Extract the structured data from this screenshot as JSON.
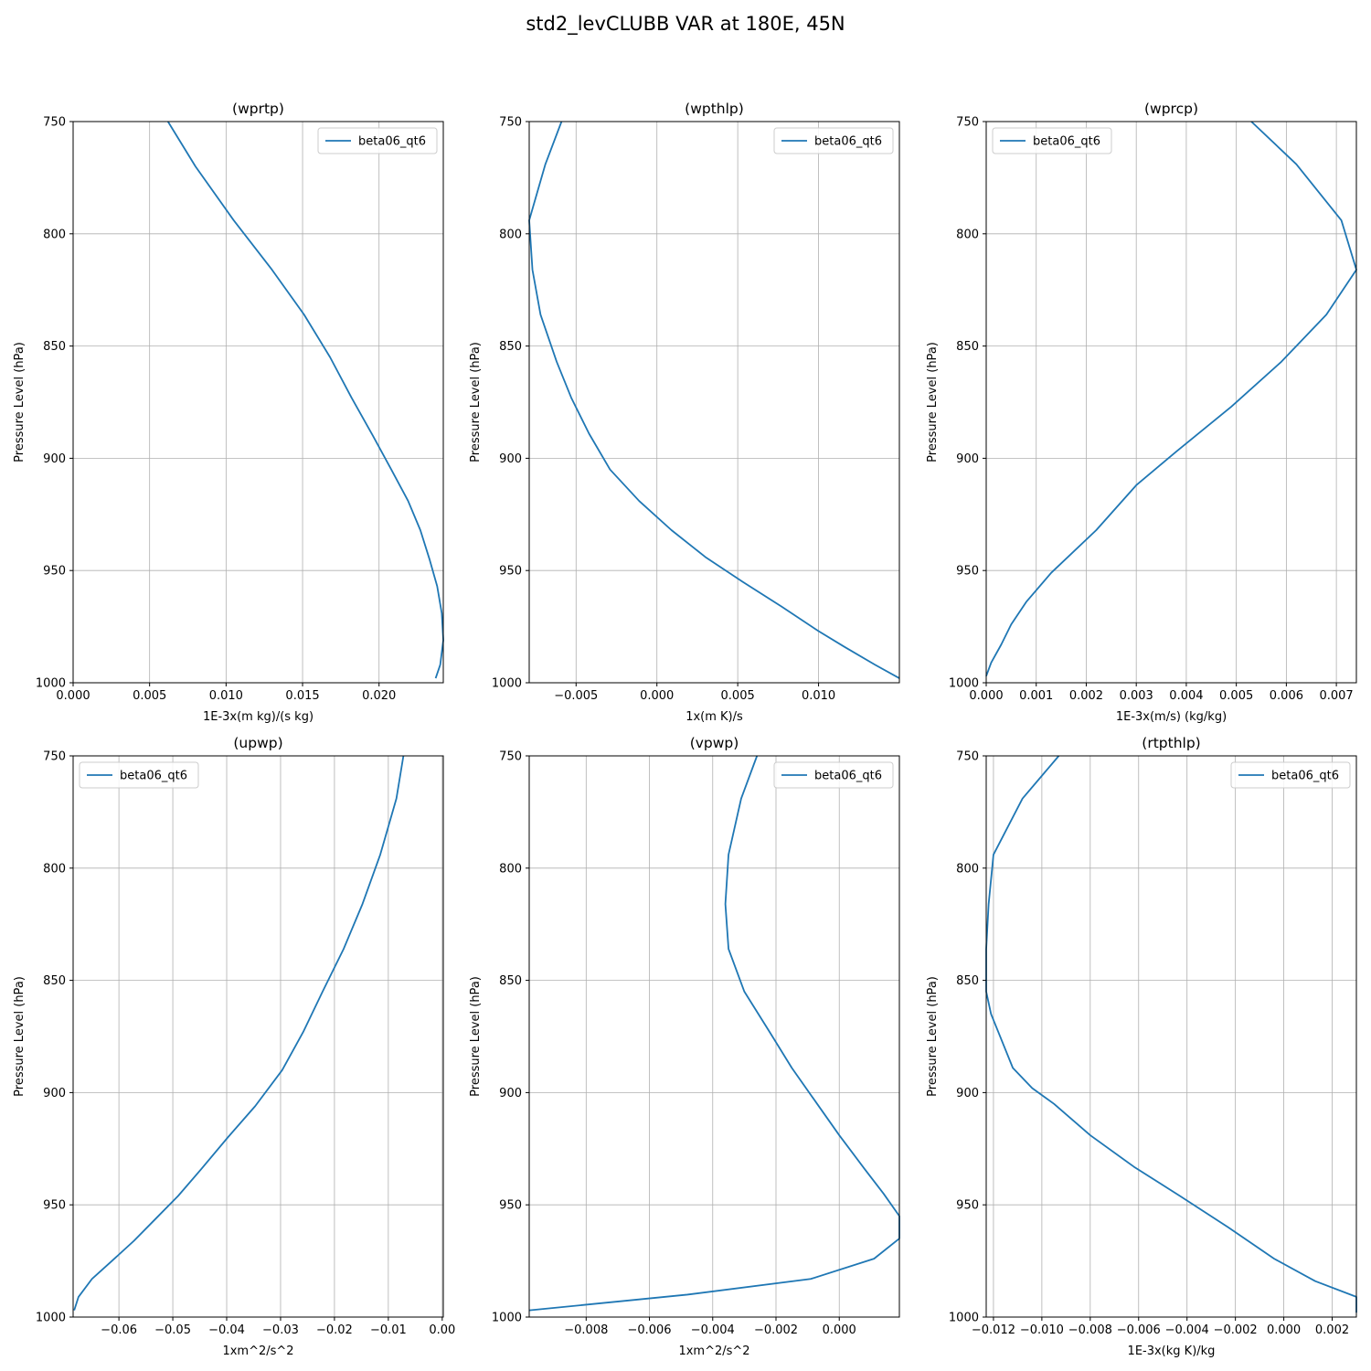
{
  "figure": {
    "title": "std2_levCLUBB VAR at 180E, 45N"
  },
  "chart_data": [
    {
      "type": "line",
      "title": "(wprtp)",
      "xlabel": "1E-3x(m kg)/(s kg)",
      "ylabel": "Pressure Level (hPa)",
      "xlim": [
        0.0,
        0.0242
      ],
      "ylim": [
        1000,
        750
      ],
      "xticks": [
        0.0,
        0.005,
        0.01,
        0.015,
        0.02
      ],
      "xtick_labels": [
        "0.000",
        "0.005",
        "0.010",
        "0.015",
        "0.020"
      ],
      "yticks": [
        750,
        800,
        850,
        900,
        950,
        1000
      ],
      "grid": true,
      "legend_position": "upper right",
      "series": [
        {
          "name": "beta06_qt6",
          "color": "#1f77b4",
          "x": [
            0.0062,
            0.008,
            0.0105,
            0.013,
            0.0151,
            0.0168,
            0.0182,
            0.0196,
            0.0208,
            0.0219,
            0.0227,
            0.0233,
            0.0238,
            0.0241,
            0.0242,
            0.024,
            0.0237
          ],
          "y": [
            750,
            770,
            794,
            816,
            836,
            855,
            873,
            890,
            905,
            919,
            932,
            945,
            957,
            969,
            981,
            992,
            998
          ]
        }
      ]
    },
    {
      "type": "line",
      "title": "(wpthlp)",
      "xlabel": "1x(m K)/s",
      "ylabel": "Pressure Level (hPa)",
      "xlim": [
        -0.0079,
        0.015
      ],
      "ylim": [
        1000,
        750
      ],
      "xticks": [
        -0.005,
        0.0,
        0.005,
        0.01
      ],
      "xtick_labels": [
        "−0.005",
        "0.000",
        "0.005",
        "0.010"
      ],
      "yticks": [
        750,
        800,
        850,
        900,
        950,
        1000
      ],
      "grid": true,
      "legend_position": "upper right",
      "series": [
        {
          "name": "beta06_qt6",
          "color": "#1f77b4",
          "x": [
            -0.0059,
            -0.0069,
            -0.0079,
            -0.0077,
            -0.0072,
            -0.0062,
            -0.0053,
            -0.0042,
            -0.0029,
            -0.0011,
            0.0009,
            0.003,
            0.0053,
            0.0077,
            0.01,
            0.0116,
            0.0135,
            0.015
          ],
          "y": [
            750,
            769,
            794,
            816,
            836,
            857,
            873,
            889,
            905,
            919,
            932,
            944,
            955,
            966,
            977,
            984,
            992,
            998
          ]
        }
      ]
    },
    {
      "type": "line",
      "title": "(wprcp)",
      "xlabel": "1E-3x(m/s) (kg/kg)",
      "ylabel": "Pressure Level (hPa)",
      "xlim": [
        0.0,
        0.0074
      ],
      "ylim": [
        1000,
        750
      ],
      "xticks": [
        0.0,
        0.001,
        0.002,
        0.003,
        0.004,
        0.005,
        0.006,
        0.007
      ],
      "xtick_labels": [
        "0.000",
        "0.001",
        "0.002",
        "0.003",
        "0.004",
        "0.005",
        "0.006",
        "0.007"
      ],
      "yticks": [
        750,
        800,
        850,
        900,
        950,
        1000
      ],
      "grid": true,
      "legend_position": "upper left",
      "series": [
        {
          "name": "beta06_qt6",
          "color": "#1f77b4",
          "x": [
            0.0053,
            0.0062,
            0.0071,
            0.0074,
            0.0068,
            0.0059,
            0.0049,
            0.0038,
            0.003,
            0.0022,
            0.0013,
            0.0008,
            0.0005,
            0.0003,
            0.0001,
            0.0
          ],
          "y": [
            750,
            769,
            794,
            816,
            836,
            857,
            877,
            897,
            912,
            932,
            951,
            964,
            974,
            983,
            991,
            997
          ]
        }
      ]
    },
    {
      "type": "line",
      "title": "(upwp)",
      "xlabel": "1xm^2/s^2",
      "ylabel": "Pressure Level (hPa)",
      "xlim": [
        -0.0685,
        0.0002
      ],
      "ylim": [
        1000,
        750
      ],
      "xticks": [
        -0.06,
        -0.05,
        -0.04,
        -0.03,
        -0.02,
        -0.01,
        0.0
      ],
      "xtick_labels": [
        "−0.06",
        "−0.05",
        "−0.04",
        "−0.03",
        "−0.02",
        "−0.01",
        "0.00"
      ],
      "yticks": [
        750,
        800,
        850,
        900,
        950,
        1000
      ],
      "grid": true,
      "legend_position": "upper left",
      "series": [
        {
          "name": "beta06_qt6",
          "color": "#1f77b4",
          "x": [
            -0.0072,
            -0.0085,
            -0.0115,
            -0.0148,
            -0.0183,
            -0.0222,
            -0.0258,
            -0.0297,
            -0.0347,
            -0.0398,
            -0.0447,
            -0.049,
            -0.0531,
            -0.0572,
            -0.0613,
            -0.065,
            -0.0675,
            -0.0683
          ],
          "y": [
            750,
            769,
            794,
            816,
            836,
            855,
            873,
            890,
            906,
            920,
            934,
            946,
            956,
            966,
            975,
            983,
            991,
            997
          ]
        }
      ]
    },
    {
      "type": "line",
      "title": "(vpwp)",
      "xlabel": "1xm^2/s^2",
      "ylabel": "Pressure Level (hPa)",
      "xlim": [
        -0.0098,
        0.0019
      ],
      "ylim": [
        1000,
        750
      ],
      "xticks": [
        -0.008,
        -0.006,
        -0.004,
        -0.002,
        0.0
      ],
      "xtick_labels": [
        "−0.008",
        "−0.006",
        "−0.004",
        "−0.002",
        "0.000"
      ],
      "yticks": [
        750,
        800,
        850,
        900,
        950,
        1000
      ],
      "grid": true,
      "legend_position": "upper right",
      "series": [
        {
          "name": "beta06_qt6",
          "color": "#1f77b4",
          "x": [
            -0.0026,
            -0.0031,
            -0.0035,
            -0.0036,
            -0.0035,
            -0.003,
            -0.0022,
            -0.0015,
            -0.0007,
            0.0,
            0.0008,
            0.0014,
            0.0019,
            0.0019,
            0.0011,
            -0.0009,
            -0.0048,
            -0.0098
          ],
          "y": [
            750,
            769,
            794,
            816,
            836,
            855,
            873,
            889,
            905,
            919,
            934,
            945,
            955,
            965,
            974,
            983,
            990,
            997
          ]
        }
      ]
    },
    {
      "type": "line",
      "title": "(rtpthlp)",
      "xlabel": "1E-3x(kg K)/kg",
      "ylabel": "Pressure Level (hPa)",
      "xlim": [
        -0.0123,
        0.003
      ],
      "ylim": [
        1000,
        750
      ],
      "xticks": [
        -0.012,
        -0.01,
        -0.008,
        -0.006,
        -0.004,
        -0.002,
        0.0,
        0.002
      ],
      "xtick_labels": [
        "−0.012",
        "−0.010",
        "−0.008",
        "−0.006",
        "−0.004",
        "−0.002",
        "0.000",
        "0.002"
      ],
      "yticks": [
        750,
        800,
        850,
        900,
        950,
        1000
      ],
      "grid": true,
      "legend_position": "upper right",
      "series": [
        {
          "name": "beta06_qt6",
          "color": "#1f77b4",
          "x": [
            -0.0093,
            -0.0108,
            -0.012,
            -0.0122,
            -0.0123,
            -0.0123,
            -0.0121,
            -0.0118,
            -0.0112,
            -0.0104,
            -0.0095,
            -0.008,
            -0.0062,
            -0.0043,
            -0.0023,
            -0.0004,
            0.0013,
            0.003,
            0.003
          ],
          "y": [
            750,
            769,
            794,
            816,
            836,
            855,
            865,
            873,
            889,
            898,
            905,
            919,
            933,
            946,
            960,
            974,
            984,
            991,
            998
          ]
        }
      ]
    }
  ]
}
